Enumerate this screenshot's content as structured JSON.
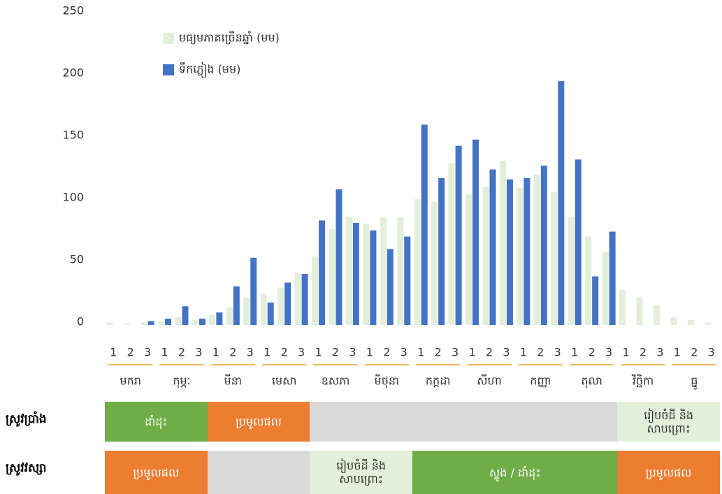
{
  "chart_data": {
    "type": "bar",
    "categories": [
      "1",
      "2",
      "3",
      "1",
      "2",
      "3",
      "1",
      "2",
      "3",
      "1",
      "2",
      "3",
      "1",
      "2",
      "3",
      "1",
      "2",
      "3",
      "1",
      "2",
      "3",
      "1",
      "2",
      "3",
      "1",
      "2",
      "3",
      "1",
      "2",
      "3",
      "1",
      "2",
      "3",
      "1",
      "2",
      "3"
    ],
    "months": [
      "មករា",
      "កុម្ភៈ",
      "មីនា",
      "មេសា",
      "ឧសភា",
      "មិថុនា",
      "កក្កដា",
      "សីហា",
      "កញ្ញា",
      "តុលា",
      "វិច្ឆិកា",
      "ធ្នូ"
    ],
    "series": [
      {
        "name": "មធ្យមភាគច្រើនឆ្នាំ (មម)",
        "color": "#e2efda",
        "values": [
          2,
          1,
          2,
          3,
          6,
          4,
          8,
          14,
          22,
          25,
          30,
          42,
          55,
          77,
          87,
          81,
          87,
          87,
          101,
          99,
          130,
          105,
          111,
          132,
          110,
          121,
          107,
          87,
          71,
          59,
          28,
          22,
          16,
          6,
          4,
          2
        ]
      },
      {
        "name": "ទឹកភ្លៀង (មម)",
        "color": "#4472c4",
        "values": [
          0,
          0,
          3,
          5,
          15,
          5,
          10,
          31,
          54,
          18,
          34,
          41,
          84,
          109,
          82,
          76,
          61,
          71,
          161,
          118,
          144,
          149,
          125,
          117,
          118,
          128,
          196,
          133,
          39,
          75,
          0,
          0,
          0,
          0,
          0,
          0
        ]
      }
    ],
    "ylim": [
      0,
      250
    ],
    "yticks": [
      0,
      50,
      100,
      150,
      200,
      250
    ],
    "grid": false,
    "legend": "top-left"
  },
  "calendar": [
    {
      "label": "ស្រូវប្រាំង",
      "segments": [
        {
          "start": 0,
          "end": 2,
          "color": "#70ad47",
          "lines": [
            "ដាំដុះ"
          ]
        },
        {
          "start": 2,
          "end": 4,
          "color": "#ed7d31",
          "lines": [
            "ប្រមូលផល"
          ]
        },
        {
          "start": 4,
          "end": 10,
          "color": "#d9d9d9"
        },
        {
          "start": 10,
          "end": 12,
          "color": "#e2efda",
          "lines": [
            "រៀបចំដី និង",
            "សាបព្រោះ"
          ]
        }
      ]
    },
    {
      "label": "ស្រូវវស្សា",
      "segments": [
        {
          "start": 0,
          "end": 2,
          "color": "#ed7d31",
          "lines": [
            "ប្រមូលផល"
          ]
        },
        {
          "start": 2,
          "end": 4,
          "color": "#d9d9d9"
        },
        {
          "start": 4,
          "end": 6,
          "color": "#e2efda",
          "lines": [
            "រៀបចំដី និង",
            "សាបព្រោះ"
          ]
        },
        {
          "start": 6,
          "end": 10,
          "color": "#70ad47",
          "lines": [
            "ស្ទូង / ដាំដុះ"
          ]
        },
        {
          "start": 10,
          "end": 12,
          "color": "#ed7d31",
          "lines": [
            "ប្រមូលផល"
          ]
        }
      ]
    }
  ]
}
